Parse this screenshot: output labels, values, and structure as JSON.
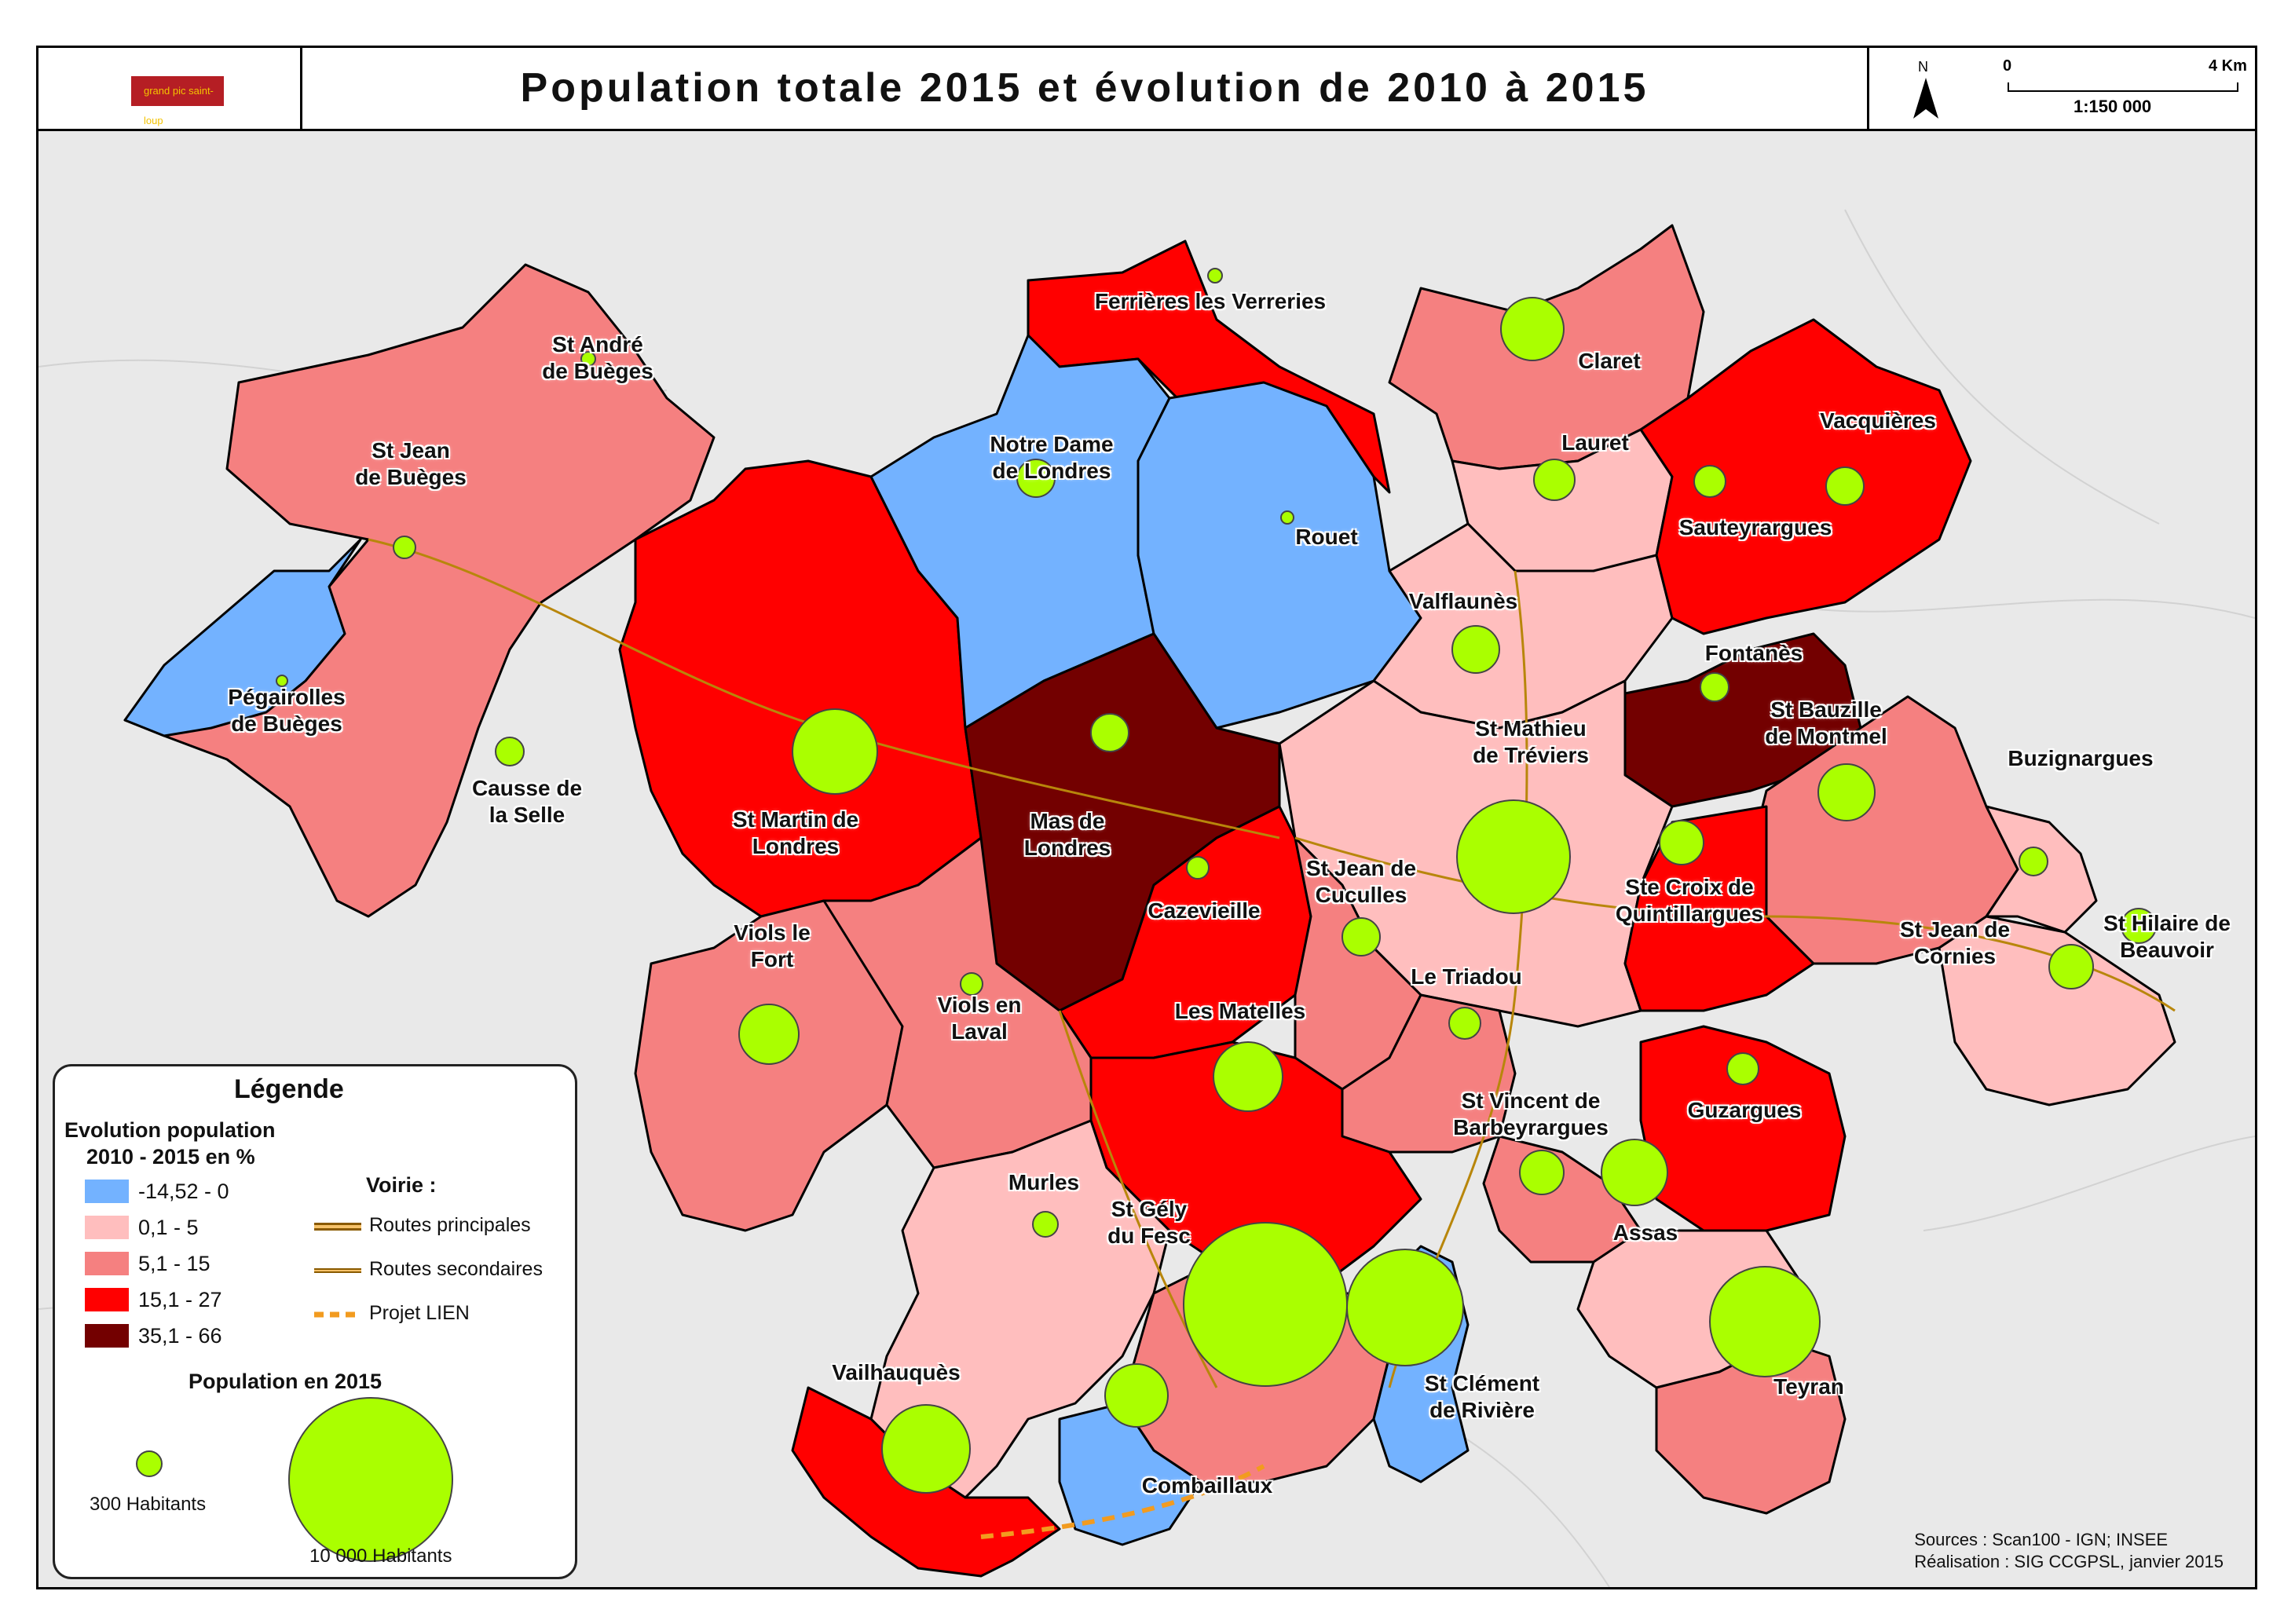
{
  "title": "Population totale 2015 et évolution de 2010 à 2015",
  "logo": {
    "text": "grand pic saint-loup"
  },
  "north_arrow": {
    "label": "N"
  },
  "scale_bar": {
    "start": "0",
    "end": "4 Km",
    "ratio": "1:150 000"
  },
  "legend": {
    "heading": "Légende",
    "evolution_title_1": "Evolution population",
    "evolution_title_2": "2010 - 2015 en %",
    "classes": [
      {
        "label": "-14,52 - 0",
        "color": "#73b2ff"
      },
      {
        "label": "0,1 - 5",
        "color": "#ffbebe"
      },
      {
        "label": "5,1 - 15",
        "color": "#f58080"
      },
      {
        "label": "15,1 - 27",
        "color": "#ff0000"
      },
      {
        "label": "35,1 - 66",
        "color": "#730000"
      }
    ],
    "voirie_title": "Voirie :",
    "voirie": [
      {
        "label": "Routes principales"
      },
      {
        "label": "Routes secondaires"
      },
      {
        "label": "Projet LIEN"
      }
    ],
    "population_title": "Population en 2015",
    "pop_small": "300 Habitants",
    "pop_large": "10 000 Habitants",
    "circle_color": "#aaff00"
  },
  "credits": {
    "sources": "Sources : Scan100 - IGN; INSEE",
    "realisation": "Réalisation : SIG CCGPSL, janvier 2015"
  },
  "communes": [
    {
      "name": "St André\nde Buèges"
    },
    {
      "name": "St Jean\nde Buèges"
    },
    {
      "name": "Pégairolles\nde Buèges"
    },
    {
      "name": "Causse de\nla Selle"
    },
    {
      "name": "St Martin de\nLondres"
    },
    {
      "name": "Ferrières les Verreries"
    },
    {
      "name": "Notre Dame\nde Londres"
    },
    {
      "name": "Rouet"
    },
    {
      "name": "Mas de\nLondres"
    },
    {
      "name": "Claret"
    },
    {
      "name": "Lauret"
    },
    {
      "name": "Vacquières"
    },
    {
      "name": "Sauteyrargues"
    },
    {
      "name": "Valflaunès"
    },
    {
      "name": "Fontanès"
    },
    {
      "name": "St Bauzille\nde Montmel"
    },
    {
      "name": "St Mathieu\nde Tréviers"
    },
    {
      "name": "Buzignargues"
    },
    {
      "name": "Cazevieille"
    },
    {
      "name": "St Jean de\nCuculles"
    },
    {
      "name": "Ste Croix de\nQuintillargues"
    },
    {
      "name": "St Jean de\nCornies"
    },
    {
      "name": "St Hilaire de\nBeauvoir"
    },
    {
      "name": "Viols le\nFort"
    },
    {
      "name": "Viols en\nLaval"
    },
    {
      "name": "Les Matelles"
    },
    {
      "name": "Le Triadou"
    },
    {
      "name": "Guzargues"
    },
    {
      "name": "St Vincent de\nBarbeyrargues"
    },
    {
      "name": "Murles"
    },
    {
      "name": "St Gély\ndu Fesc"
    },
    {
      "name": "Assas"
    },
    {
      "name": "Vailhauquès"
    },
    {
      "name": "St Clément\nde Rivière"
    },
    {
      "name": "Teyran"
    },
    {
      "name": "Combaillaux"
    }
  ]
}
